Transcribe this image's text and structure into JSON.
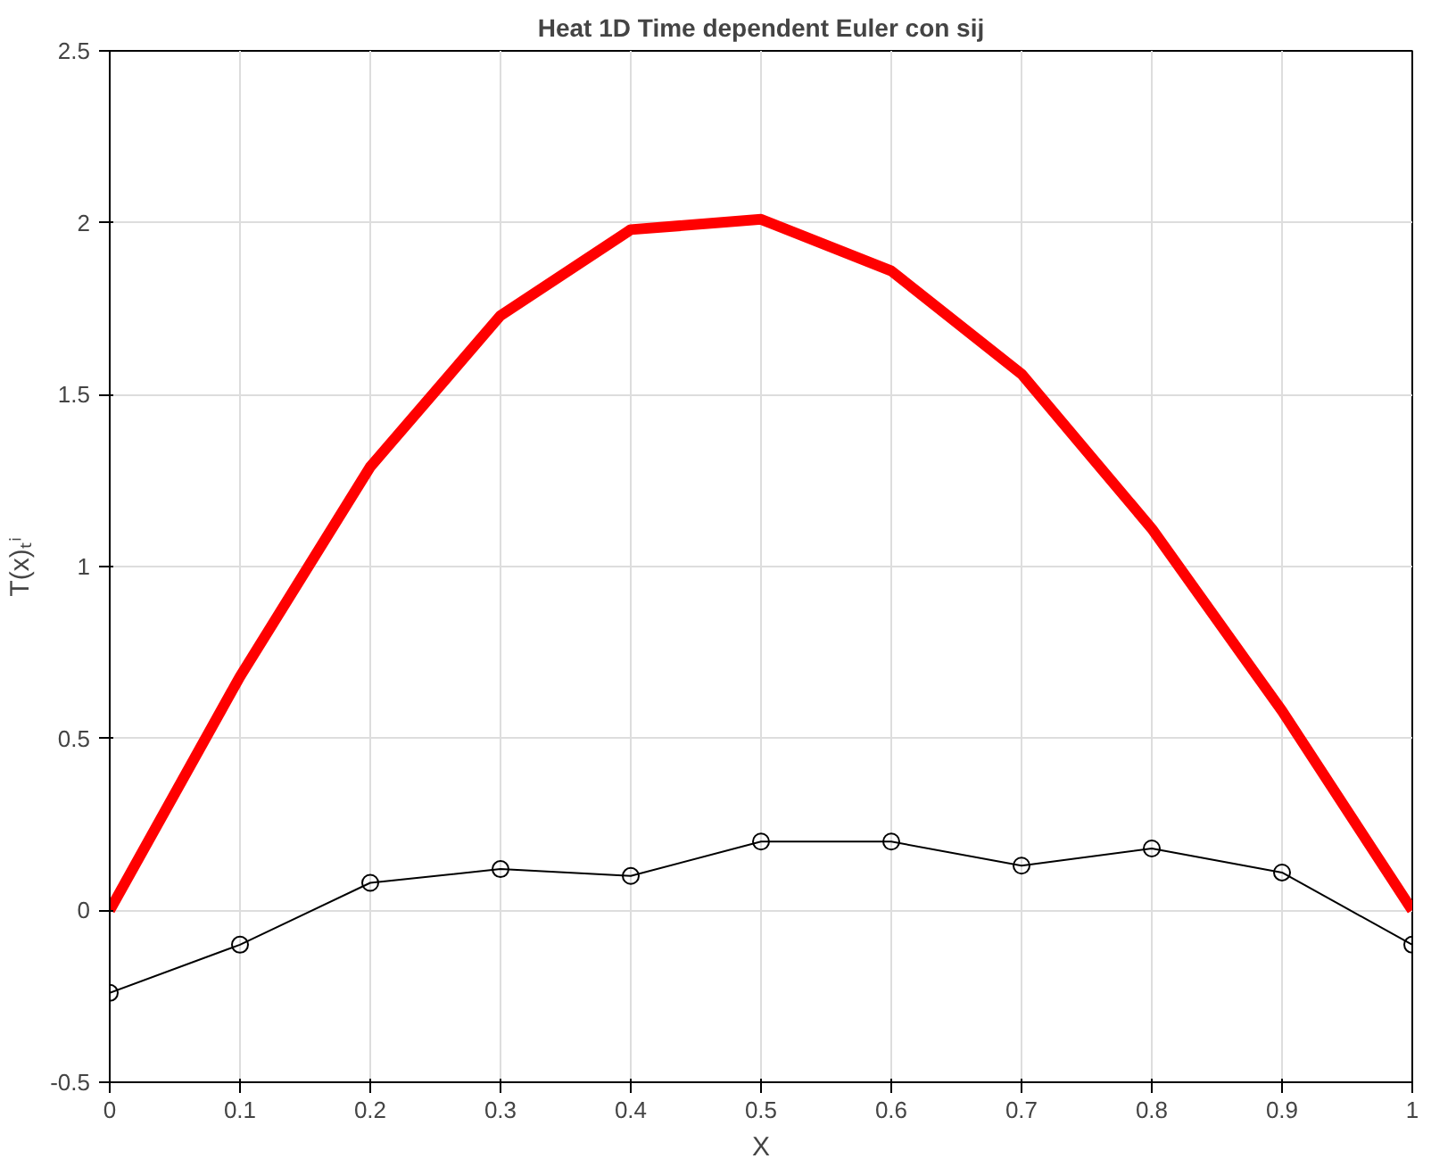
{
  "chart_data": {
    "type": "line",
    "title": "Heat 1D Time dependent Euler con sij",
    "xlabel": "X",
    "ylabel": "T(x)ₜⁱ",
    "x": [
      0,
      0.1,
      0.2,
      0.3,
      0.4,
      0.5,
      0.6,
      0.7,
      0.8,
      0.9,
      1.0
    ],
    "series": [
      {
        "color": "#ff0000",
        "marker": "none",
        "values": [
          0,
          0.68,
          1.29,
          1.73,
          1.98,
          2.01,
          1.86,
          1.56,
          1.11,
          0.58,
          0
        ]
      },
      {
        "color": "#000000",
        "marker": "circle",
        "values": [
          -0.24,
          -0.1,
          0.08,
          0.12,
          0.1,
          0.2,
          0.2,
          0.13,
          0.18,
          0.11,
          -0.1
        ]
      }
    ],
    "xlim": [
      0,
      1
    ],
    "ylim": [
      -0.5,
      2.5
    ],
    "xticks": [
      0,
      0.1,
      0.2,
      0.3,
      0.4,
      0.5,
      0.6,
      0.7,
      0.8,
      0.9,
      1
    ],
    "yticks": [
      -0.5,
      0,
      0.5,
      1,
      1.5,
      2,
      2.5
    ],
    "grid": true
  }
}
